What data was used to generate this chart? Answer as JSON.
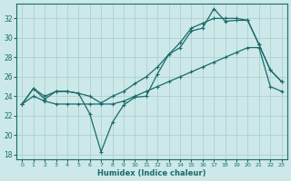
{
  "xlabel": "Humidex (Indice chaleur)",
  "ylabel": "",
  "bg_color": "#cce8e8",
  "grid_color": "#aacccc",
  "line_color": "#1a6b6b",
  "xlim": [
    -0.5,
    23.5
  ],
  "ylim": [
    17.5,
    33.5
  ],
  "xticks": [
    0,
    1,
    2,
    3,
    4,
    5,
    6,
    7,
    8,
    9,
    10,
    11,
    12,
    13,
    14,
    15,
    16,
    17,
    18,
    19,
    20,
    21,
    22,
    23
  ],
  "yticks": [
    18,
    20,
    22,
    24,
    26,
    28,
    30,
    32
  ],
  "line1_x": [
    0,
    1,
    2,
    3,
    4,
    5,
    6,
    7,
    8,
    9,
    10,
    11,
    12,
    13,
    14,
    15,
    16,
    17,
    18,
    19,
    20,
    21,
    22,
    23
  ],
  "line1_y": [
    23.2,
    24.8,
    23.7,
    24.5,
    24.5,
    24.3,
    22.2,
    18.3,
    21.3,
    23.1,
    23.9,
    24.0,
    26.3,
    28.3,
    29.0,
    30.7,
    31.0,
    33.0,
    31.7,
    31.8,
    31.8,
    29.3,
    26.7,
    25.5
  ],
  "line2_x": [
    0,
    1,
    2,
    3,
    4,
    5,
    6,
    7,
    8,
    9,
    10,
    11,
    12,
    13,
    14,
    15,
    16,
    17,
    18,
    19,
    20,
    21,
    22,
    23
  ],
  "line2_y": [
    23.2,
    24.8,
    24.0,
    24.5,
    24.5,
    24.3,
    24.0,
    23.3,
    24.0,
    24.5,
    25.3,
    26.0,
    27.0,
    28.3,
    29.5,
    31.0,
    31.5,
    32.0,
    32.0,
    32.0,
    31.8,
    29.3,
    26.7,
    25.5
  ],
  "line3_x": [
    0,
    1,
    2,
    3,
    4,
    5,
    6,
    7,
    8,
    9,
    10,
    11,
    12,
    13,
    14,
    15,
    16,
    17,
    18,
    19,
    20,
    21,
    22,
    23
  ],
  "line3_y": [
    23.2,
    24.0,
    23.5,
    23.2,
    23.2,
    23.2,
    23.2,
    23.2,
    23.2,
    23.5,
    24.0,
    24.5,
    25.0,
    25.5,
    26.0,
    26.5,
    27.0,
    27.5,
    28.0,
    28.5,
    29.0,
    29.0,
    25.0,
    24.5
  ],
  "marker_size": 3.0,
  "line_width": 0.9
}
